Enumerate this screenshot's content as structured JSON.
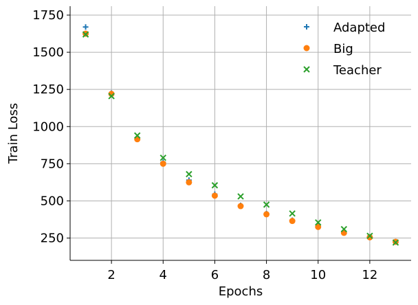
{
  "chart_data": {
    "type": "scatter",
    "title": "",
    "xlabel": "Epochs",
    "ylabel": "Train Loss",
    "xlim": [
      0.4,
      13.6
    ],
    "ylim": [
      100,
      1810
    ],
    "x_ticks": [
      2,
      4,
      6,
      8,
      10,
      12
    ],
    "y_ticks": [
      250,
      500,
      750,
      1000,
      1250,
      1500,
      1750
    ],
    "grid": true,
    "legend_position": "top-right",
    "x": [
      1,
      2,
      3,
      4,
      5,
      6,
      7,
      8,
      9,
      10,
      11,
      12,
      13
    ],
    "series": [
      {
        "name": "Adapted",
        "marker": "plus",
        "color": "#1f77b4",
        "values": [
          1670,
          1225,
          925,
          760,
          640,
          545,
          470,
          415,
          370,
          330,
          290,
          258,
          225
        ]
      },
      {
        "name": "Big",
        "marker": "circle",
        "color": "#ff7f0e",
        "values": [
          1625,
          1220,
          915,
          750,
          625,
          535,
          465,
          410,
          365,
          325,
          285,
          255,
          225
        ]
      },
      {
        "name": "Teacher",
        "marker": "x",
        "color": "#2ca02c",
        "values": [
          1620,
          1205,
          940,
          790,
          680,
          605,
          530,
          475,
          415,
          355,
          310,
          265,
          220
        ]
      }
    ]
  }
}
